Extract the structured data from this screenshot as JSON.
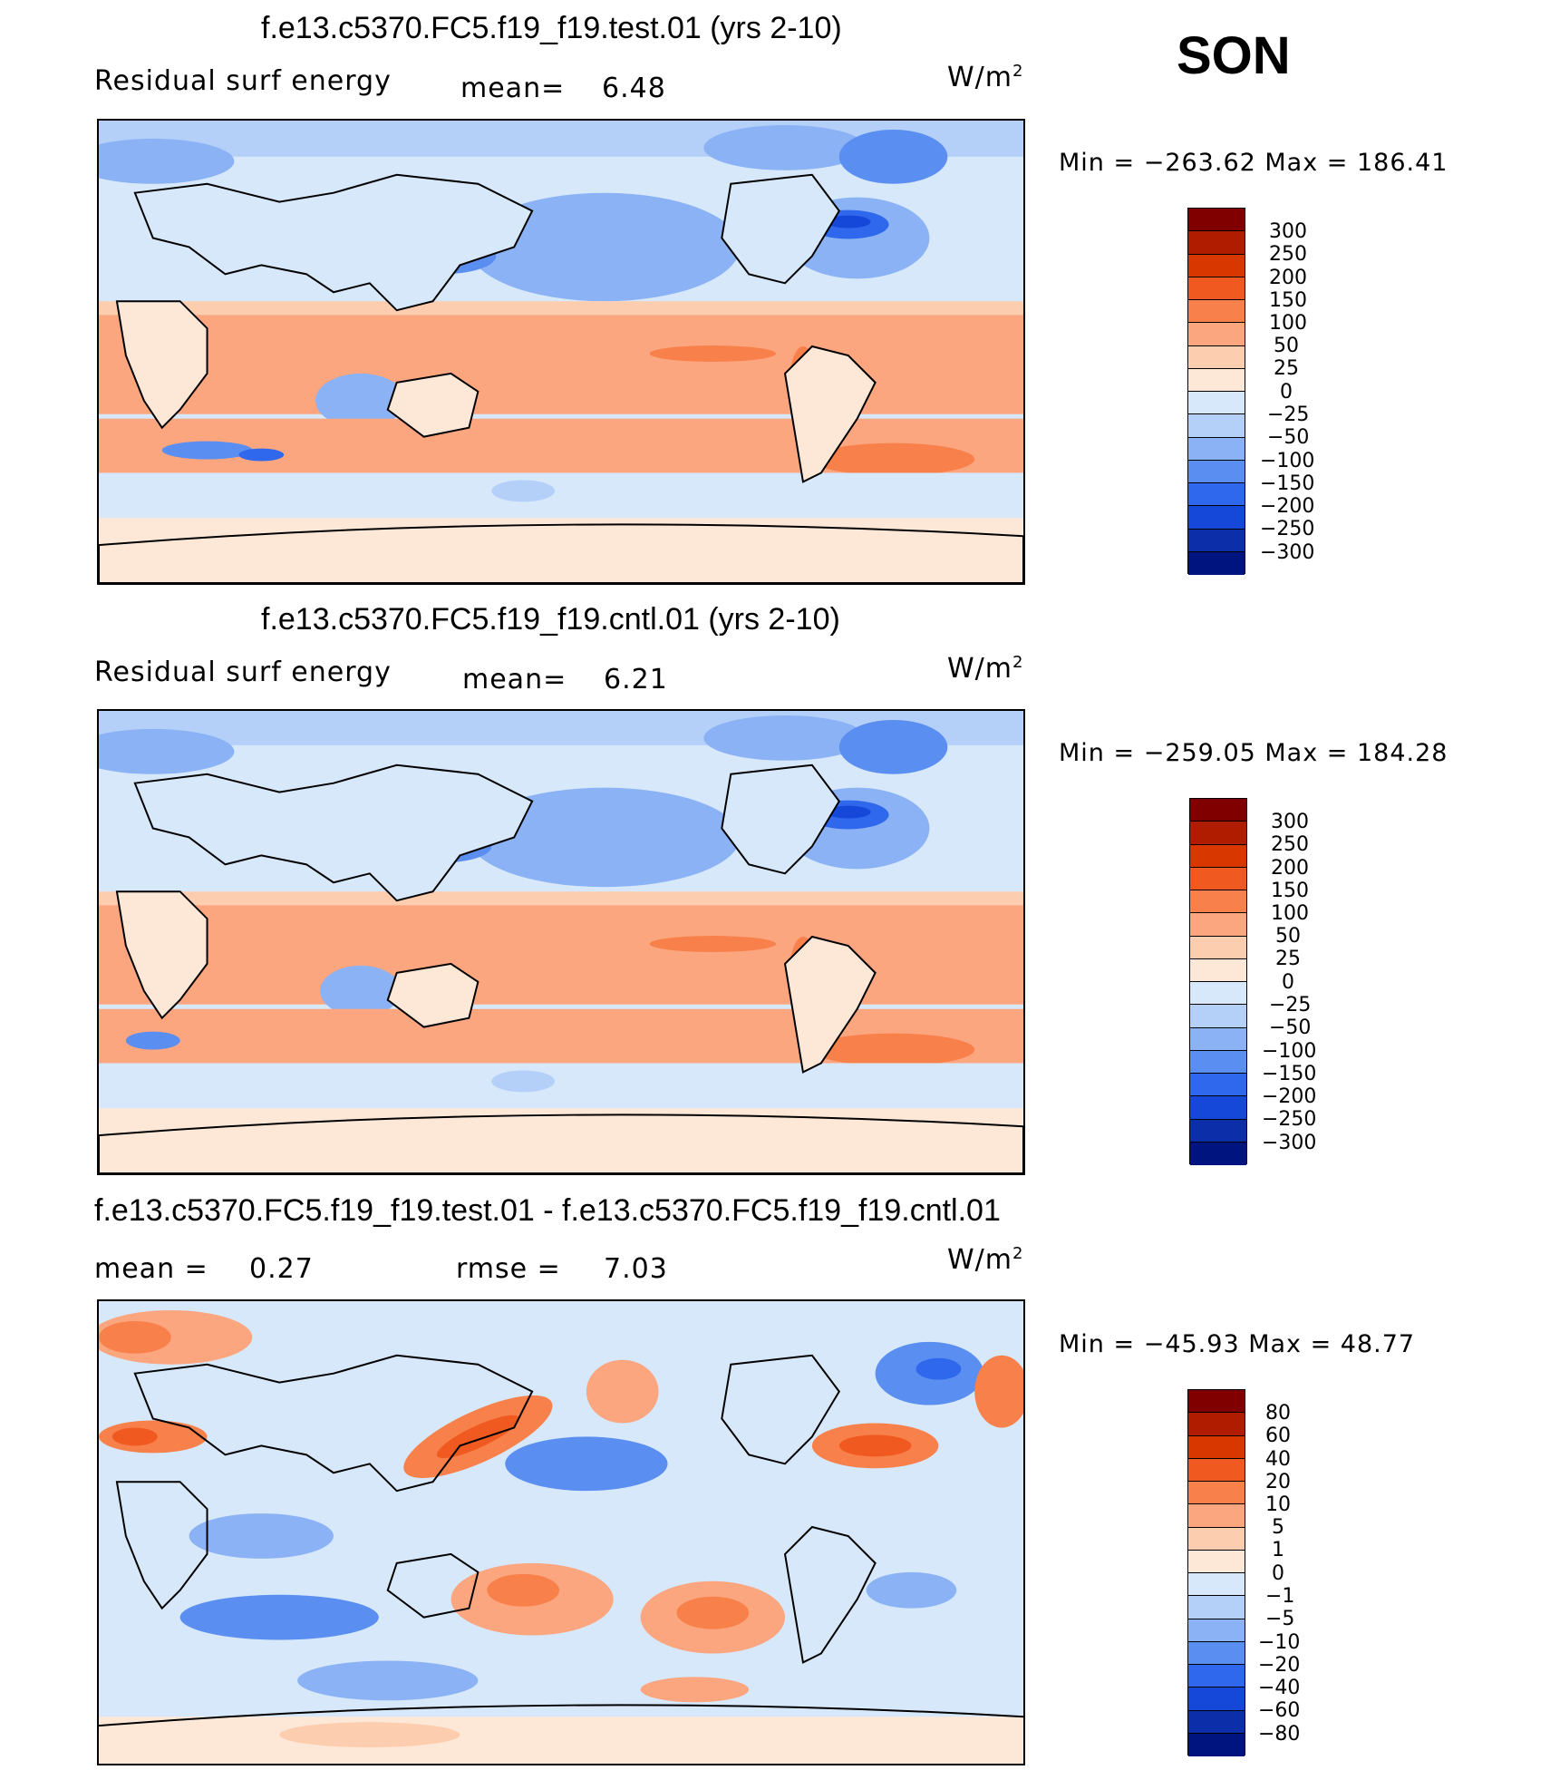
{
  "season": "SON",
  "panels": [
    {
      "title": "f.e13.c5370.FC5.f19_f19.test.01 (yrs 2-10)",
      "left_label": "Residual surf energy",
      "mid_label": "mean=",
      "mid_value": "6.48",
      "units": "W/m",
      "units_exp": "2",
      "stats": "Min = −263.62 Max = 186.41"
    },
    {
      "title": "f.e13.c5370.FC5.f19_f19.cntl.01 (yrs 2-10)",
      "left_label": "Residual surf energy",
      "mid_label": "mean=",
      "mid_value": "6.21",
      "units": "W/m",
      "units_exp": "2",
      "stats": "Min = −259.05 Max = 184.28"
    },
    {
      "title": "f.e13.c5370.FC5.f19_f19.test.01 - f.e13.c5370.FC5.f19_f19.cntl.01",
      "left_label": "mean =",
      "left_value": "0.27",
      "mid_label": "rmse =",
      "mid_value": "7.03",
      "units": "W/m",
      "units_exp": "2",
      "stats": "Min = −45.93 Max = 48.77"
    }
  ],
  "colorbars": {
    "abs": {
      "labels": [
        "300",
        "250",
        "200",
        "150",
        "100",
        "50",
        "25",
        "0",
        "−25",
        "−50",
        "−100",
        "−150",
        "−200",
        "−250",
        "−300"
      ],
      "colors": [
        "#800000",
        "#b01c00",
        "#d83800",
        "#f05a20",
        "#f8804a",
        "#fca680",
        "#fdcdb0",
        "#fde8d8",
        "#d6e8fa",
        "#b4d0f8",
        "#8ab2f4",
        "#5a8ef0",
        "#2f68ec",
        "#1548d8",
        "#0c2ea8",
        "#001480"
      ]
    },
    "diff": {
      "labels": [
        "80",
        "60",
        "40",
        "20",
        "10",
        "5",
        "1",
        "0",
        "−1",
        "−5",
        "−10",
        "−20",
        "−40",
        "−60",
        "−80"
      ],
      "colors": [
        "#800000",
        "#b01c00",
        "#d83800",
        "#f05a20",
        "#f8804a",
        "#fca680",
        "#fdcdb0",
        "#fde8d8",
        "#d6e8fa",
        "#b4d0f8",
        "#8ab2f4",
        "#5a8ef0",
        "#2f68ec",
        "#1548d8",
        "#0c2ea8",
        "#001480"
      ]
    }
  },
  "map_data": {
    "projection": "cylindrical equidistant",
    "longitude_range": [
      0,
      360
    ],
    "latitude_range": [
      -90,
      90
    ],
    "field": "Residual surface energy",
    "units": "W/m2"
  }
}
